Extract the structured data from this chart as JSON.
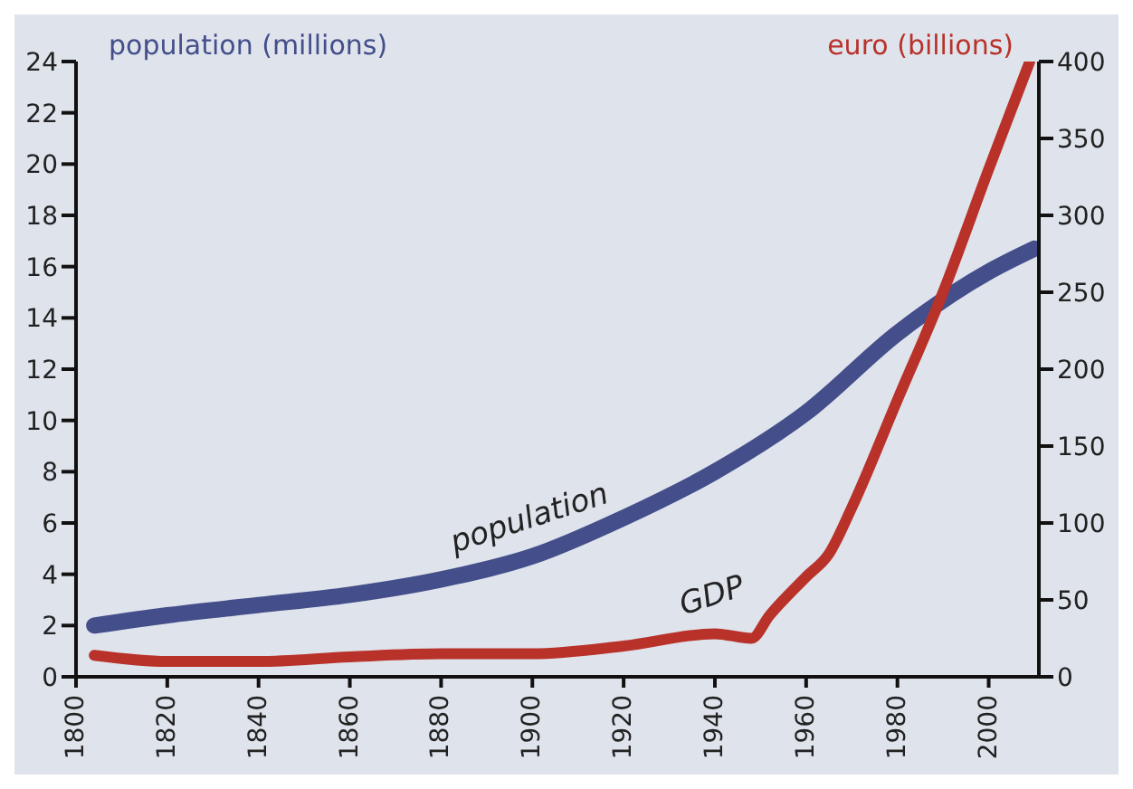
{
  "chart_data": {
    "type": "line",
    "ylabel": "population (millions)",
    "y2label": "euro (billions)",
    "xlim": [
      1800,
      2011
    ],
    "xticks": [
      1800,
      1820,
      1840,
      1860,
      1880,
      1900,
      1920,
      1940,
      1960,
      1980,
      2000
    ],
    "ylim": [
      0,
      24
    ],
    "yticks": [
      0,
      2,
      4,
      6,
      8,
      10,
      12,
      14,
      16,
      18,
      20,
      22,
      24
    ],
    "y2lim": [
      0,
      400
    ],
    "y2ticks": [
      0,
      50,
      100,
      150,
      200,
      250,
      300,
      350,
      400
    ],
    "grid": false,
    "legend": false,
    "marker": "none",
    "series": [
      {
        "name": "population",
        "color": "#434e8a",
        "x": [
          1804,
          1820,
          1840,
          1860,
          1880,
          1900,
          1920,
          1940,
          1960,
          1980,
          2000,
          2010
        ],
        "values": [
          2.0,
          2.4,
          2.8,
          3.2,
          3.8,
          4.7,
          6.2,
          8.0,
          10.3,
          13.4,
          15.8,
          16.7
        ]
      },
      {
        "name": "GDP",
        "color": "#b9322a",
        "axis": "y2",
        "x": [
          1804,
          1820,
          1840,
          1860,
          1880,
          1900,
          1920,
          1940,
          1948,
          1952,
          1960,
          1965,
          1970,
          1980,
          1990,
          2000,
          2009
        ],
        "values": [
          14,
          10,
          10,
          13,
          15,
          15,
          20,
          28,
          25,
          40,
          65,
          80,
          110,
          180,
          250,
          330,
          400
        ]
      }
    ]
  }
}
